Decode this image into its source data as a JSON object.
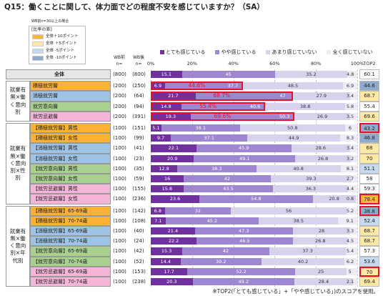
{
  "chart_data": {
    "type": "stacked_bar_h",
    "title": "Q15：働くことに関して、体力面でどの程度不安を感じていますか？（SA）",
    "legend_note": "WB前n=30以上の場合",
    "diff_legend": {
      "title": "[比率の差]",
      "items": [
        {
          "label": "全体＋10ポイント",
          "color": "#f6b73c"
        },
        {
          "label": "全体 ＋5ポイント",
          "color": "#fde9a3"
        },
        {
          "label": "全体 -5ポイント",
          "color": "#c5d9ef"
        },
        {
          "label": "全体 -10ポイント",
          "color": "#8faacc"
        }
      ]
    },
    "n_headers": [
      {
        "line1": "WB前",
        "line2": "n="
      },
      {
        "line1": "WB後",
        "line2": "n="
      }
    ],
    "top2_header": "TOP2",
    "footnote": "※TOP2(「とても感じている」+「やや感じている」)のスコアを使用。",
    "xlim": [
      0,
      100
    ],
    "xticks": [
      {
        "value": 0,
        "label": "0%"
      },
      {
        "value": 20,
        "label": "20%"
      },
      {
        "value": 40,
        "label": "40%"
      },
      {
        "value": 60,
        "label": "60%"
      },
      {
        "value": 80,
        "label": "80%"
      },
      {
        "value": 100,
        "label": "100%"
      }
    ],
    "grid": true,
    "categories": [
      "全体",
      "積極就労層",
      "消極就労層",
      "就労意向層",
      "就労忌避層",
      "【積極就労層】男性",
      "【積極就労層】女性",
      "【消極就労層】男性",
      "【消極就労層】女性",
      "【就労意向層】男性",
      "【就労意向層】女性",
      "【就労忌避層】男性",
      "【就労忌避層】女性",
      "【積極就労層】65-69歳",
      "【積極就労層】70-74歳",
      "【消極就労層】65-69歳",
      "【消極就労層】70-74歳",
      "【就労意向層】65-69歳",
      "【就労意向層】70-74歳",
      "【就労忌避層】65-69歳",
      "【就労忌避層】70-74歳"
    ],
    "label_colors": [
      "#e7e6e6",
      "#f9b233",
      "#9dc3e6",
      "#a9d08e",
      "#f4b5d9",
      "#f9b233",
      "#f9b233",
      "#9dc3e6",
      "#9dc3e6",
      "#a9d08e",
      "#a9d08e",
      "#f4b5d9",
      "#f4b5d9",
      "#f9b233",
      "#f9b233",
      "#9dc3e6",
      "#9dc3e6",
      "#a9d08e",
      "#a9d08e",
      "#f4b5d9",
      "#f4b5d9"
    ],
    "groups": [
      {
        "label": "就業有無×働く意向別",
        "rows": [
          1,
          2,
          3,
          4
        ]
      },
      {
        "label": "就業有無×働く意向別×性別",
        "rows": [
          5,
          6,
          7,
          8,
          9,
          10,
          11,
          12
        ]
      },
      {
        "label": "就業有無×働く意向別×年代別",
        "rows": [
          13,
          14,
          15,
          16,
          17,
          18,
          19,
          20
        ]
      }
    ],
    "n_before": [
      "(800)",
      "(200)",
      "(200)",
      "(200)",
      "(200)",
      "(100)",
      "(100)",
      "(100)",
      "(100)",
      "(100)",
      "(100)",
      "(100)",
      "(100)",
      "(100)",
      "(100)",
      "(100)",
      "(100)",
      "(100)",
      "(100)",
      "(100)",
      "(100)"
    ],
    "n_after": [
      "(800)",
      "(250)",
      "(64)",
      "(94)",
      "(391)",
      "(151)",
      "(99)",
      "(41)",
      "(23)",
      "(35)",
      "(59)",
      "(155)",
      "(236)",
      "(142)",
      "(108)",
      "(40)",
      "(24)",
      "(42)",
      "(52)",
      "(153)",
      "(238)"
    ],
    "series": [
      {
        "name": "とても感じている",
        "color": "#7030a0",
        "text_color": "#ffffff",
        "values": [
          15.1,
          6.9,
          21.7,
          14.8,
          19.3,
          5.1,
          9.7,
          22.1,
          20.9,
          12.8,
          16.0,
          15.8,
          23.6,
          6.8,
          7.1,
          21.4,
          22.2,
          15.3,
          14.4,
          17.7,
          20.3
        ]
      },
      {
        "name": "やや感じている",
        "color": "#9e86d1",
        "text_color": "#ffffff",
        "values": [
          45.0,
          37.7,
          47.0,
          40.6,
          50.3,
          38.1,
          37.1,
          45.9,
          49.1,
          38.3,
          42.0,
          43.5,
          54.8,
          32.0,
          45.2,
          47.3,
          46.5,
          42.0,
          39.2,
          52.2,
          49.2
        ]
      },
      {
        "name": "あまり感じていない",
        "color": "#d9d2ec",
        "text_color": "#333333",
        "values": [
          35.2,
          48.5,
          27.9,
          38.8,
          26.9,
          50.8,
          44.9,
          28.6,
          26.8,
          40.8,
          39.3,
          36.3,
          20.8,
          56.0,
          38.5,
          28.0,
          26.8,
          37.3,
          40.2,
          25.0,
          28.4
        ]
      },
      {
        "name": "全く感じていない",
        "color": "#eeeaf6",
        "text_color": "#333333",
        "values": [
          4.8,
          6.9,
          3.4,
          5.8,
          3.5,
          6.0,
          8.3,
          3.4,
          3.2,
          8.1,
          2.7,
          4.4,
          0.8,
          5.2,
          9.1,
          3.3,
          4.5,
          5.4,
          6.2,
          5.0,
          2.1
        ]
      }
    ],
    "top2": [
      60.1,
      44.6,
      68.7,
      55.4,
      69.6,
      43.2,
      46.8,
      68.0,
      70.0,
      51.1,
      58.0,
      59.3,
      78.4,
      38.8,
      52.4,
      68.7,
      68.7,
      57.3,
      53.6,
      70.0,
      69.4
    ],
    "top2_colors": [
      "#ffffff",
      "#8faacc",
      "#fde9a3",
      "#ffffff",
      "#fde9a3",
      "#8faacc",
      "#8faacc",
      "#fde9a3",
      "#fde9a3",
      "#c5d9ef",
      "#ffffff",
      "#ffffff",
      "#f6b73c",
      "#8faacc",
      "#c5d9ef",
      "#fde9a3",
      "#fde9a3",
      "#ffffff",
      "#c5d9ef",
      "#fde9a3",
      "#fde9a3"
    ],
    "top2_highlight": [
      false,
      false,
      false,
      false,
      false,
      true,
      false,
      false,
      false,
      false,
      false,
      false,
      true,
      true,
      false,
      false,
      false,
      false,
      false,
      true,
      false
    ],
    "top2_callouts": [
      null,
      "44.6%",
      "68.7%",
      "55.4%",
      "69.6%",
      null,
      null,
      null,
      null,
      null,
      null,
      null,
      null,
      null,
      null,
      null,
      null,
      null,
      null,
      null,
      null
    ]
  }
}
